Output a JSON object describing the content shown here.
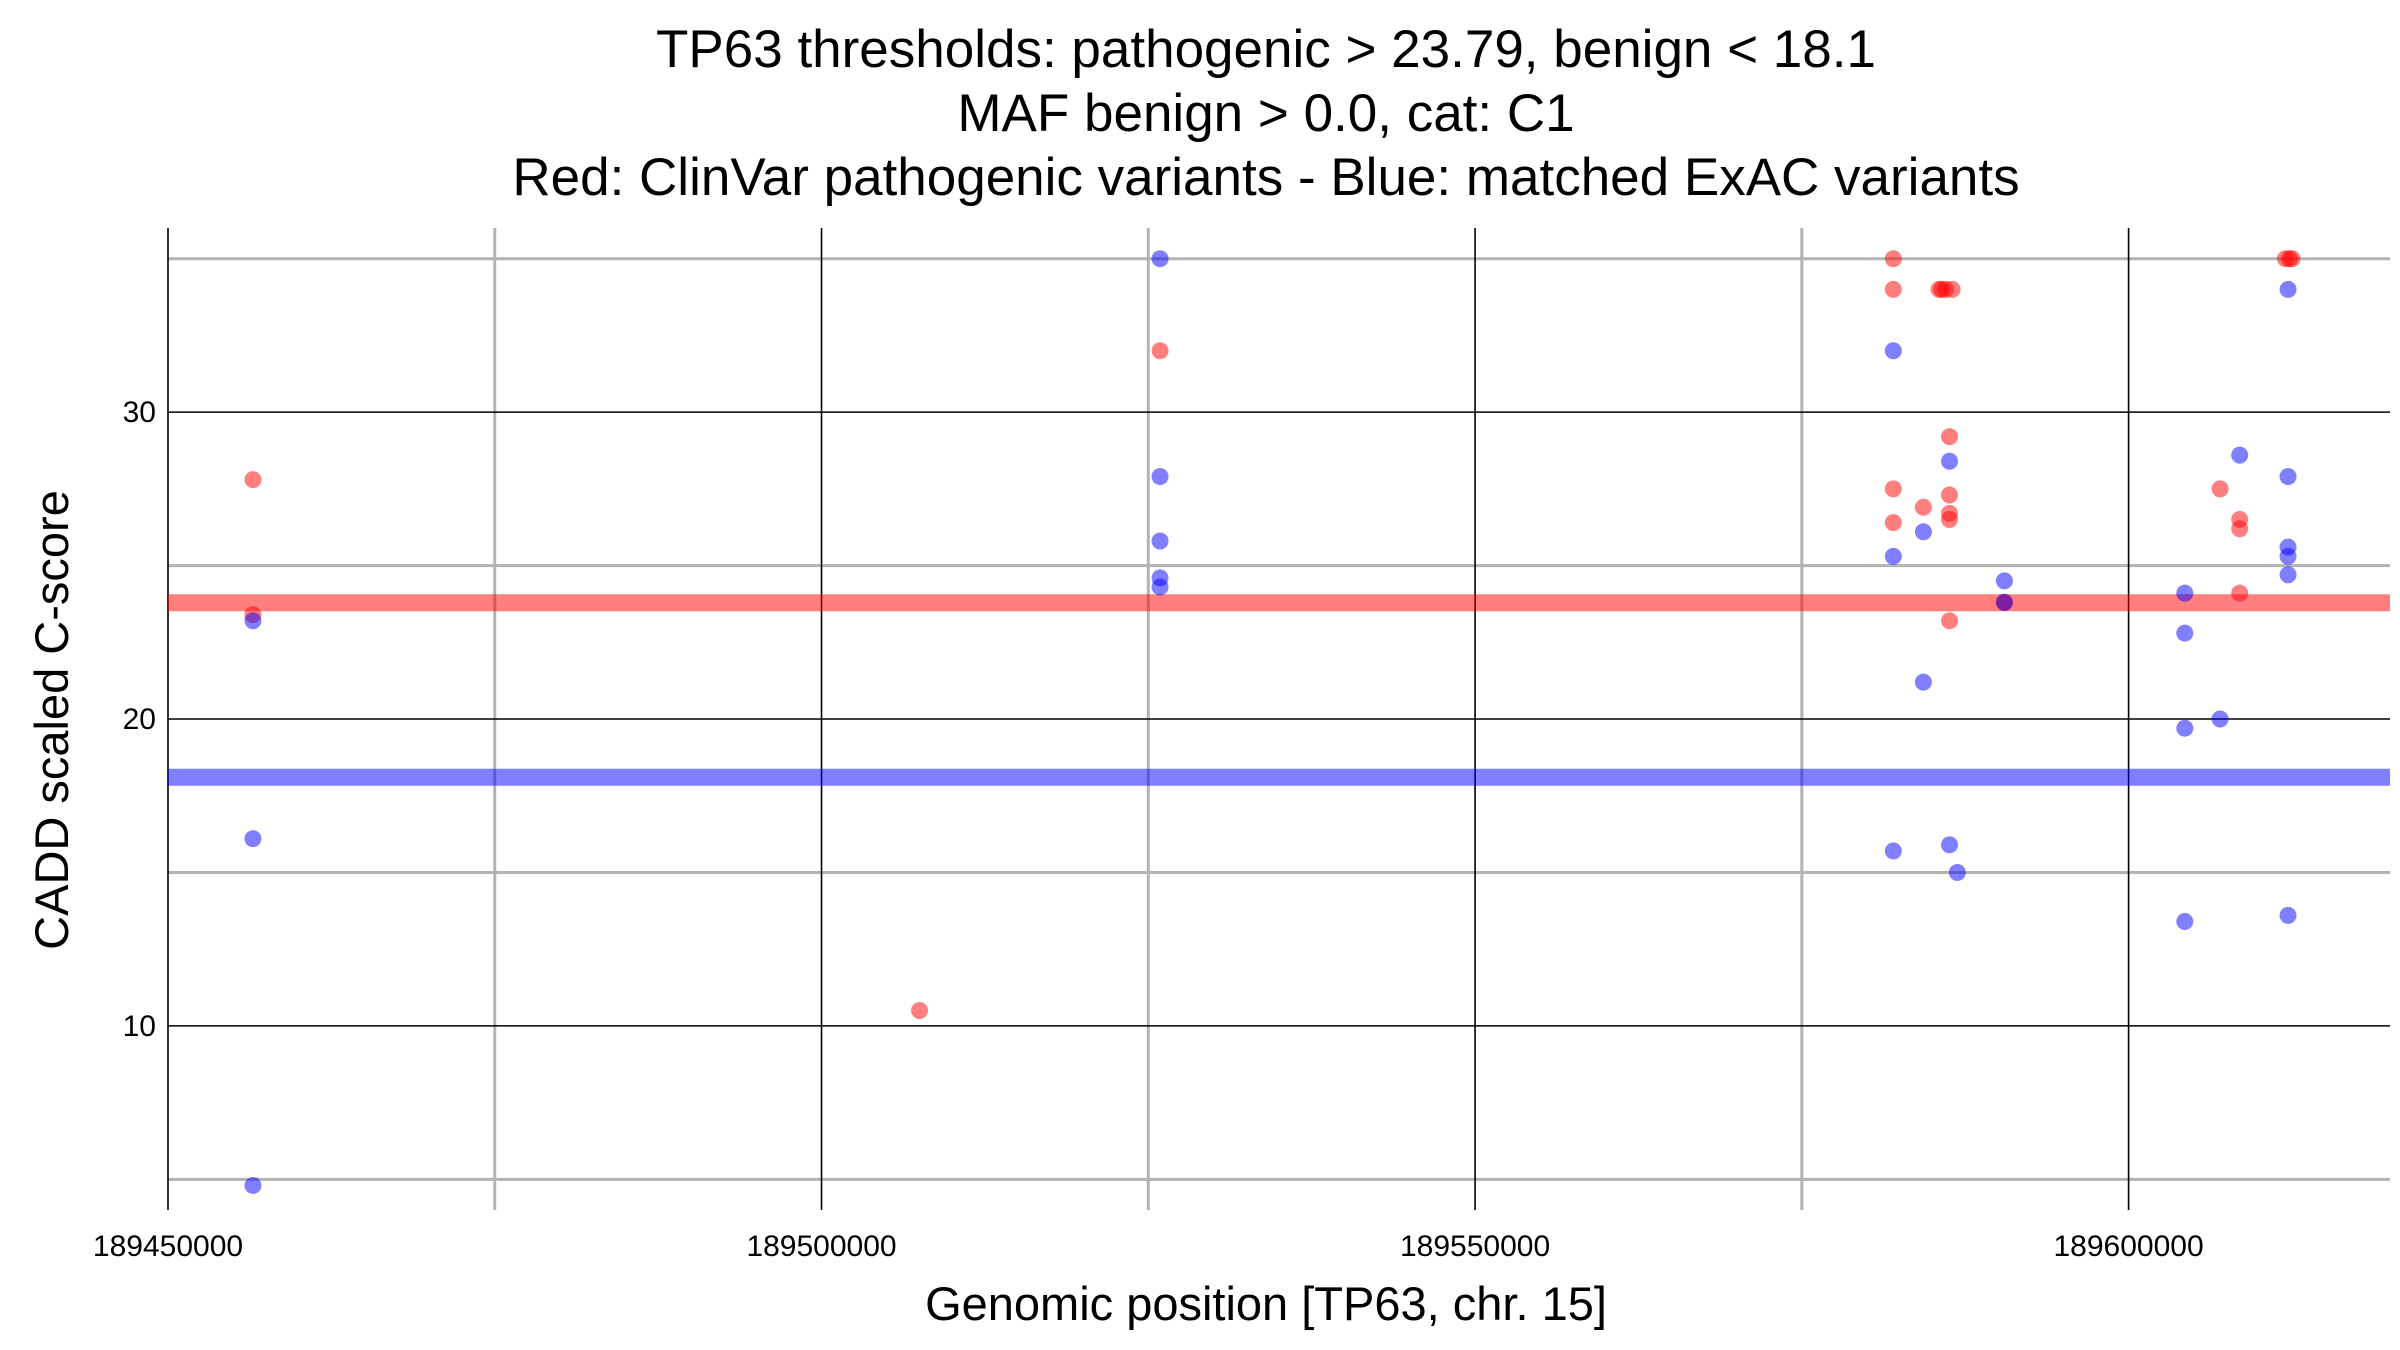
{
  "chart_data": {
    "type": "scatter",
    "title": [
      "TP63 thresholds: pathogenic > 23.79, benign < 18.1",
      "MAF benign > 0.0, cat: C1",
      "Red: ClinVar pathogenic variants - Blue: matched ExAC variants"
    ],
    "xlabel": "Genomic position [TP63, chr. 15]",
    "ylabel": "CADD scaled C-score",
    "xlim": [
      189450000,
      189620000
    ],
    "ylim": [
      4,
      36
    ],
    "x_ticks": [
      189450000,
      189500000,
      189550000,
      189600000
    ],
    "x_tick_labels": [
      "189450000",
      "189500000",
      "189550000",
      "189600000"
    ],
    "x_minor_grid": [
      189475000,
      189525000,
      189575000
    ],
    "y_ticks": [
      10,
      20,
      30
    ],
    "y_tick_labels": [
      "10",
      "20",
      "30"
    ],
    "y_minor_grid": [
      5,
      15,
      25,
      35
    ],
    "grid": true,
    "thresholds": [
      {
        "name": "pathogenic",
        "value": 23.79,
        "color": "#ff0000"
      },
      {
        "name": "benign",
        "value": 18.1,
        "color": "#0000ff"
      }
    ],
    "series": [
      {
        "name": "ClinVar pathogenic variants",
        "color": "#ff0000",
        "points": [
          [
            189456500,
            27.8
          ],
          [
            189456500,
            23.4
          ],
          [
            189507500,
            10.5
          ],
          [
            189525900,
            32.0
          ],
          [
            189582000,
            35.0
          ],
          [
            189582000,
            34.0
          ],
          [
            189582000,
            27.5
          ],
          [
            189582000,
            26.4
          ],
          [
            189584300,
            26.9
          ],
          [
            189585500,
            34.0
          ],
          [
            189585700,
            34.0
          ],
          [
            189586000,
            34.0
          ],
          [
            189586500,
            34.0
          ],
          [
            189586300,
            29.2
          ],
          [
            189586300,
            27.3
          ],
          [
            189586300,
            26.7
          ],
          [
            189586300,
            26.5
          ],
          [
            189586300,
            23.2
          ],
          [
            189590500,
            23.8
          ],
          [
            189607000,
            27.5
          ],
          [
            189608500,
            26.5
          ],
          [
            189608500,
            26.2
          ],
          [
            189608500,
            24.1
          ],
          [
            189612000,
            35.0
          ],
          [
            189612300,
            35.0
          ],
          [
            189612500,
            35.0
          ]
        ]
      },
      {
        "name": "matched ExAC variants",
        "color": "#0000ff",
        "points": [
          [
            189456500,
            23.2
          ],
          [
            189456500,
            16.1
          ],
          [
            189456500,
            4.8
          ],
          [
            189525900,
            35.0
          ],
          [
            189525900,
            27.9
          ],
          [
            189525900,
            25.8
          ],
          [
            189525900,
            24.6
          ],
          [
            189525900,
            24.3
          ],
          [
            189582000,
            32.0
          ],
          [
            189582000,
            25.3
          ],
          [
            189582000,
            15.7
          ],
          [
            189584300,
            26.1
          ],
          [
            189584300,
            21.2
          ],
          [
            189586300,
            28.4
          ],
          [
            189586300,
            15.9
          ],
          [
            189586900,
            15.0
          ],
          [
            189590500,
            24.5
          ],
          [
            189590500,
            23.8
          ],
          [
            189604300,
            24.1
          ],
          [
            189604300,
            22.8
          ],
          [
            189604300,
            19.7
          ],
          [
            189604300,
            13.4
          ],
          [
            189607000,
            20.0
          ],
          [
            189608500,
            28.6
          ],
          [
            189612200,
            34.0
          ],
          [
            189612200,
            27.9
          ],
          [
            189612200,
            25.6
          ],
          [
            189612200,
            25.3
          ],
          [
            189612200,
            24.7
          ],
          [
            189612200,
            13.6
          ]
        ]
      }
    ]
  }
}
